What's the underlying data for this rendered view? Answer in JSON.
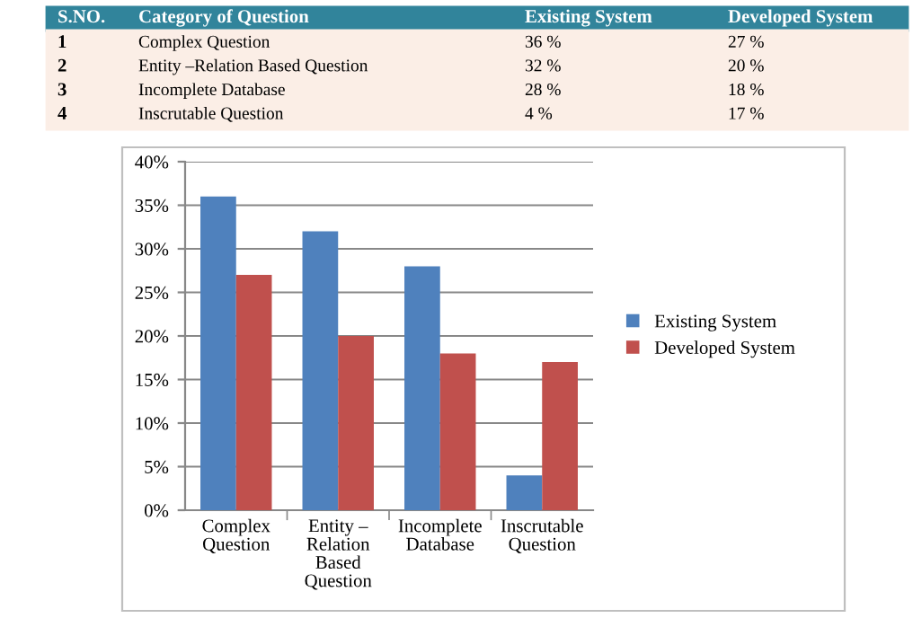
{
  "chart_data": {
    "type": "bar",
    "categories": [
      "Complex\nQuestion",
      "Entity –\nRelation\nBased\nQuestion",
      "Incomplete\nDatabase",
      "Inscrutable\nQuestion"
    ],
    "series": [
      {
        "name": "Existing System",
        "color": "#4f81bd",
        "values": [
          36,
          32,
          28,
          4
        ]
      },
      {
        "name": "Developed System",
        "color": "#c0504d",
        "values": [
          27,
          20,
          18,
          17
        ]
      }
    ],
    "ylim": [
      0,
      40
    ],
    "yticks": [
      {
        "value": 0,
        "label": "0%"
      },
      {
        "value": 5,
        "label": "5%"
      },
      {
        "value": 10,
        "label": "10%"
      },
      {
        "value": 15,
        "label": "15%"
      },
      {
        "value": 20,
        "label": "20%"
      },
      {
        "value": 25,
        "label": "25%"
      },
      {
        "value": 30,
        "label": "30%"
      },
      {
        "value": 35,
        "label": "35%"
      },
      {
        "value": 40,
        "label": "40%"
      }
    ],
    "grid": "y",
    "legend": "right",
    "annotations": [
      "S.NO.",
      "Category of Question",
      "1",
      "2",
      "3",
      "4",
      "Complex Question",
      "Entity –Relation Based Question",
      "Incomplete Database",
      "Inscrutable Question",
      "36 %",
      "32 %",
      "28 %",
      "4 %",
      "27 %",
      "20 %",
      "18 %",
      "17 %"
    ]
  }
}
